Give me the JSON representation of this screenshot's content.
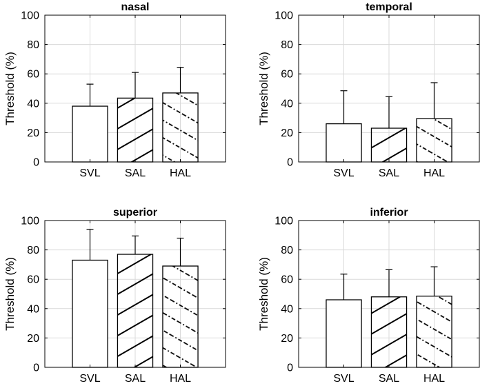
{
  "chart_data": [
    {
      "type": "bar",
      "title": "nasal",
      "ylabel": "Threshold (%)",
      "xlabel": "",
      "ylim": [
        0,
        100
      ],
      "yticks": [
        "0",
        "20",
        "40",
        "60",
        "80",
        "100"
      ],
      "grid": true,
      "categories": [
        "SVL",
        "SAL",
        "HAL"
      ],
      "values": [
        38,
        43.5,
        47
      ],
      "errors": [
        15,
        17.5,
        17.5
      ]
    },
    {
      "type": "bar",
      "title": "temporal",
      "ylabel": "Threshold (%)",
      "xlabel": "",
      "ylim": [
        0,
        100
      ],
      "yticks": [
        "0",
        "20",
        "40",
        "60",
        "80",
        "100"
      ],
      "grid": true,
      "categories": [
        "SVL",
        "SAL",
        "HAL"
      ],
      "values": [
        26,
        23,
        29.5
      ],
      "errors": [
        22.5,
        21.5,
        24.5
      ]
    },
    {
      "type": "bar",
      "title": "superior",
      "ylabel": "Threshold (%)",
      "xlabel": "",
      "ylim": [
        0,
        100
      ],
      "yticks": [
        "0",
        "20",
        "40",
        "60",
        "80",
        "100"
      ],
      "grid": true,
      "categories": [
        "SVL",
        "SAL",
        "HAL"
      ],
      "values": [
        73,
        77,
        69
      ],
      "errors": [
        21,
        12.5,
        19
      ]
    },
    {
      "type": "bar",
      "title": "inferior",
      "ylabel": "Threshold (%)",
      "xlabel": "",
      "ylim": [
        0,
        100
      ],
      "yticks": [
        "0",
        "20",
        "40",
        "60",
        "80",
        "100"
      ],
      "grid": true,
      "categories": [
        "SVL",
        "SAL",
        "HAL"
      ],
      "values": [
        46,
        48,
        48.5
      ],
      "errors": [
        17.5,
        18.5,
        20
      ]
    }
  ]
}
